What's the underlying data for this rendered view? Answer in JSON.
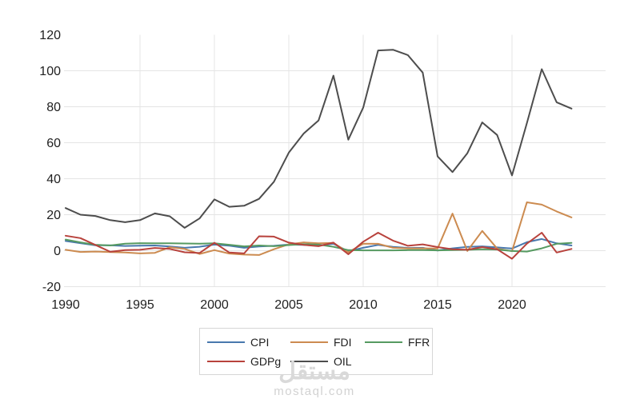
{
  "watermark": {
    "logo": "مستقل",
    "domain": "mostaql.com"
  },
  "legend": {
    "items": [
      {
        "label": "CPI",
        "color": "#4878ad"
      },
      {
        "label": "FDI",
        "color": "#cc8b50"
      },
      {
        "label": "FFR",
        "color": "#569a61"
      },
      {
        "label": "GDPg",
        "color": "#b8423c"
      },
      {
        "label": "OIL",
        "color": "#4d4d4d"
      }
    ]
  },
  "chart_data": {
    "type": "line",
    "title": "",
    "xlabel": "",
    "ylabel": "",
    "grid": true,
    "legend_position": "bottom",
    "xlim": [
      1990,
      2024
    ],
    "ylim": [
      -20,
      120
    ],
    "xticks": [
      1990,
      1995,
      2000,
      2005,
      2010,
      2015,
      2020
    ],
    "yticks": [
      120,
      100,
      80,
      60,
      40,
      20,
      0,
      -20
    ],
    "x": [
      1990,
      1991,
      1992,
      1993,
      1994,
      1995,
      1996,
      1997,
      1998,
      1999,
      2000,
      2001,
      2002,
      2003,
      2004,
      2005,
      2006,
      2007,
      2008,
      2009,
      2010,
      2011,
      2012,
      2013,
      2014,
      2015,
      2016,
      2017,
      2018,
      2019,
      2020,
      2021,
      2022,
      2023,
      2024
    ],
    "series": [
      {
        "name": "CPI",
        "color": "#4878ad",
        "values": [
          5.4,
          4.2,
          3.0,
          3.0,
          2.6,
          2.8,
          2.9,
          2.3,
          1.6,
          2.2,
          3.4,
          2.8,
          1.6,
          2.3,
          2.7,
          3.4,
          3.2,
          2.9,
          3.8,
          -0.4,
          1.6,
          3.2,
          2.1,
          1.5,
          1.6,
          0.1,
          1.3,
          2.1,
          2.4,
          1.8,
          1.2,
          4.7,
          6.5,
          4.1,
          2.9
        ]
      },
      {
        "name": "FDI",
        "color": "#cc8b50",
        "values": [
          0.5,
          -0.7,
          -0.5,
          -0.8,
          -1.0,
          -1.5,
          -1.2,
          1.9,
          1.0,
          -1.8,
          0.3,
          -1.6,
          -2.2,
          -2.4,
          0.8,
          3.5,
          4.6,
          4.1,
          4.3,
          -0.9,
          3.9,
          3.8,
          1.6,
          1.3,
          1.3,
          1.2,
          20.6,
          -0.2,
          11.0,
          1.2,
          -0.3,
          26.9,
          25.6,
          21.8,
          18.5
        ]
      },
      {
        "name": "FFR",
        "color": "#569a61",
        "values": [
          6.2,
          4.6,
          3.3,
          2.9,
          3.9,
          4.2,
          4.1,
          4.1,
          4.0,
          3.9,
          4.1,
          3.3,
          2.4,
          2.9,
          2.5,
          3.1,
          3.6,
          3.4,
          2.2,
          0.3,
          0.2,
          0.2,
          0.2,
          0.3,
          0.3,
          0.2,
          0.3,
          0.5,
          0.8,
          0.6,
          -0.2,
          -0.5,
          1.3,
          3.8,
          4.3
        ]
      },
      {
        "name": "GDPg",
        "color": "#b8423c",
        "values": [
          8.3,
          7.0,
          3.2,
          -0.6,
          0.3,
          0.5,
          1.5,
          1.0,
          -0.9,
          -1.3,
          4.4,
          -1.0,
          -1.5,
          8.0,
          7.8,
          4.5,
          3.2,
          2.5,
          4.5,
          -2.0,
          5.0,
          10.0,
          5.6,
          2.7,
          3.5,
          2.0,
          0.8,
          0.5,
          2.0,
          0.8,
          -4.5,
          3.9,
          10.0,
          -1.0,
          1.0
        ]
      },
      {
        "name": "OIL",
        "color": "#4d4d4d",
        "values": [
          23.7,
          20.0,
          19.3,
          17.0,
          15.8,
          17.0,
          20.7,
          19.1,
          12.7,
          17.9,
          28.5,
          24.4,
          25.0,
          28.8,
          38.3,
          54.5,
          65.1,
          72.4,
          97.3,
          61.7,
          79.5,
          111.3,
          111.7,
          108.7,
          99.0,
          52.4,
          43.7,
          54.2,
          71.3,
          64.3,
          41.8,
          70.9,
          100.9,
          82.5,
          79.0
        ]
      }
    ]
  }
}
